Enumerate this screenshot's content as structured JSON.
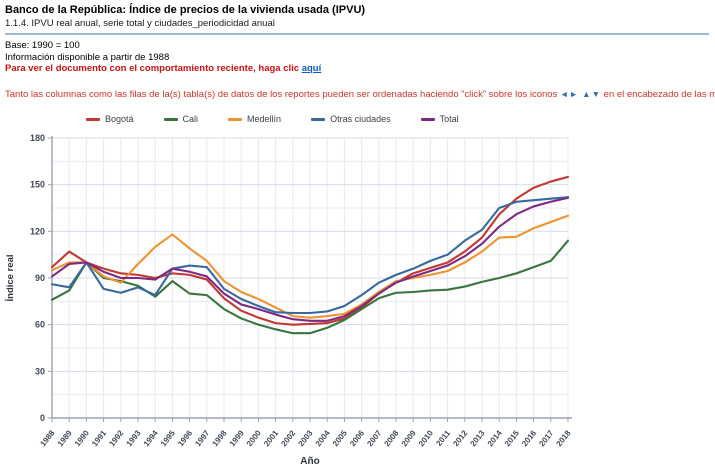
{
  "header": {
    "title": "Banco de la República: Índice de precios de la vivienda usada (IPVU)",
    "subtitle": "1.1.4. IPVU real anual, serie total y ciudades_periodicidad anual",
    "base_note": "Base: 1990 = 100",
    "availability_note": "Información disponible a partir de 1988",
    "doc_note_text": "Para ver el documento con el comportamiento reciente, haga clic ",
    "doc_link_label": "aquí",
    "sort_note_before": "Tanto las columnas como las filas de la(s) tabla(s) de datos de los reportes pueden ser ordenadas haciendo “click” sobre los iconos ",
    "sort_icons": "◄► ▲▼",
    "sort_note_after": " en el encabezado de las mismas."
  },
  "colors": {
    "divider": "#9db8d2",
    "warning_text": "#d23527",
    "link": "#0b5cc4",
    "grid_minor": "#e6e9f1",
    "grid_major": "#d8dde8",
    "axis": "#9aa3b2",
    "tick_label": "#414a59"
  },
  "chart_data": {
    "type": "line",
    "title": "",
    "xlabel": "Año",
    "ylabel": "Índice real",
    "ylim": [
      0,
      180
    ],
    "ytick_step": 30,
    "minor_grid_step": 15,
    "grid": true,
    "legend_position": "top",
    "x": [
      1988,
      1989,
      1990,
      1991,
      1992,
      1993,
      1994,
      1995,
      1996,
      1997,
      1998,
      1999,
      2000,
      2001,
      2002,
      2003,
      2004,
      2005,
      2006,
      2007,
      2008,
      2009,
      2010,
      2011,
      2012,
      2013,
      2014,
      2015,
      2016,
      2017,
      2018
    ],
    "series": [
      {
        "name": "Bogotá",
        "color": "#c2372e",
        "values": [
          97,
          107,
          100,
          96,
          93,
          92,
          90,
          93,
          92,
          89,
          77,
          69,
          64.5,
          61,
          60,
          60.5,
          61,
          64,
          71,
          80,
          87,
          93,
          96.5,
          100,
          107,
          116,
          131,
          141,
          148,
          152,
          155
        ]
      },
      {
        "name": "Cali",
        "color": "#38763c",
        "values": [
          76,
          82,
          100,
          90,
          88,
          85,
          78,
          88,
          80,
          79,
          70,
          64,
          60,
          57,
          54.5,
          54.5,
          58,
          63,
          70,
          77,
          80.5,
          81,
          82,
          82.5,
          84.5,
          87.5,
          90,
          93,
          97,
          101,
          114
        ]
      },
      {
        "name": "Medellín",
        "color": "#f0922f",
        "values": [
          95,
          100,
          100,
          91,
          87,
          99,
          110,
          118,
          109,
          101,
          88,
          81,
          76.5,
          71,
          65.5,
          64.5,
          65.5,
          67,
          73,
          81,
          88,
          90,
          92,
          94.5,
          100,
          107,
          116,
          116.5,
          122,
          126,
          130
        ]
      },
      {
        "name": "Otras ciudades",
        "color": "#36699e",
        "values": [
          86,
          84,
          100,
          83,
          80.5,
          84,
          79,
          96,
          98,
          97,
          83,
          76.5,
          72,
          68,
          67.5,
          67.5,
          68.5,
          72,
          79,
          87,
          92,
          96,
          101,
          105,
          114,
          121,
          135,
          139,
          140,
          141,
          142
        ]
      },
      {
        "name": "Total",
        "color": "#7e2a84",
        "values": [
          91,
          99,
          100,
          94,
          90,
          90,
          89,
          96,
          94,
          91,
          80,
          73,
          70,
          66.5,
          63.5,
          62.5,
          62.5,
          65.5,
          72,
          80,
          87,
          91,
          94.5,
          98,
          104,
          112,
          123,
          131,
          136,
          139,
          141.5
        ]
      }
    ]
  }
}
